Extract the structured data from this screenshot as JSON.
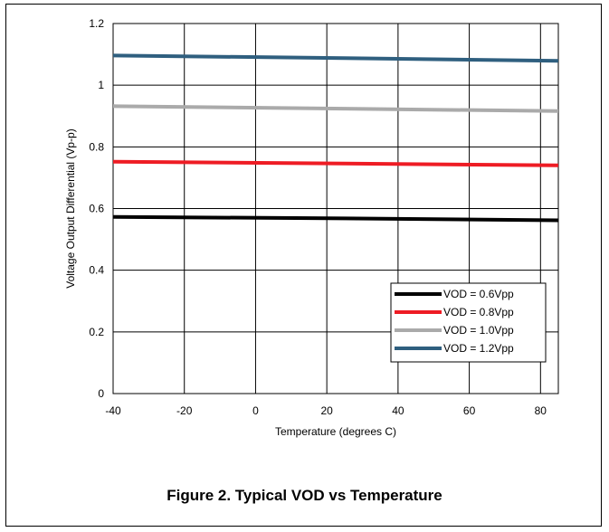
{
  "figure": {
    "caption": "Figure 2.  Typical VOD vs Temperature"
  },
  "chart_data": {
    "type": "line",
    "title": "",
    "xlabel": "Temperature (degrees C)",
    "ylabel": "Voltage Output Differential (Vp-p)",
    "xlim": [
      -40,
      85
    ],
    "ylim": [
      0,
      1.2
    ],
    "xticks": [
      -40,
      -20,
      0,
      20,
      40,
      60,
      80
    ],
    "xtick_labels": [
      "-40",
      "-20",
      "0",
      "20",
      "40",
      "60",
      "80"
    ],
    "yticks": [
      0,
      0.2,
      0.4,
      0.6,
      0.8,
      1,
      1.2
    ],
    "ytick_labels": [
      "0",
      "0.2",
      "0.4",
      "0.6",
      "0.8",
      "1",
      "1.2"
    ],
    "grid": true,
    "legend_position": "bottom-right",
    "series": [
      {
        "name": "VOD = 0.6Vpp",
        "color": "#000000",
        "x": [
          -40,
          25,
          85
        ],
        "values": [
          0.573,
          0.568,
          0.562
        ]
      },
      {
        "name": "VOD = 0.8Vpp",
        "color": "#ee1c24",
        "x": [
          -40,
          25,
          85
        ],
        "values": [
          0.752,
          0.746,
          0.74
        ]
      },
      {
        "name": "VOD = 1.0Vpp",
        "color": "#aaaaaa",
        "x": [
          -40,
          25,
          85
        ],
        "values": [
          0.932,
          0.924,
          0.916
        ]
      },
      {
        "name": "VOD = 1.2Vpp",
        "color": "#2f5f7f",
        "x": [
          -40,
          25,
          85
        ],
        "values": [
          1.096,
          1.088,
          1.079
        ]
      }
    ]
  }
}
